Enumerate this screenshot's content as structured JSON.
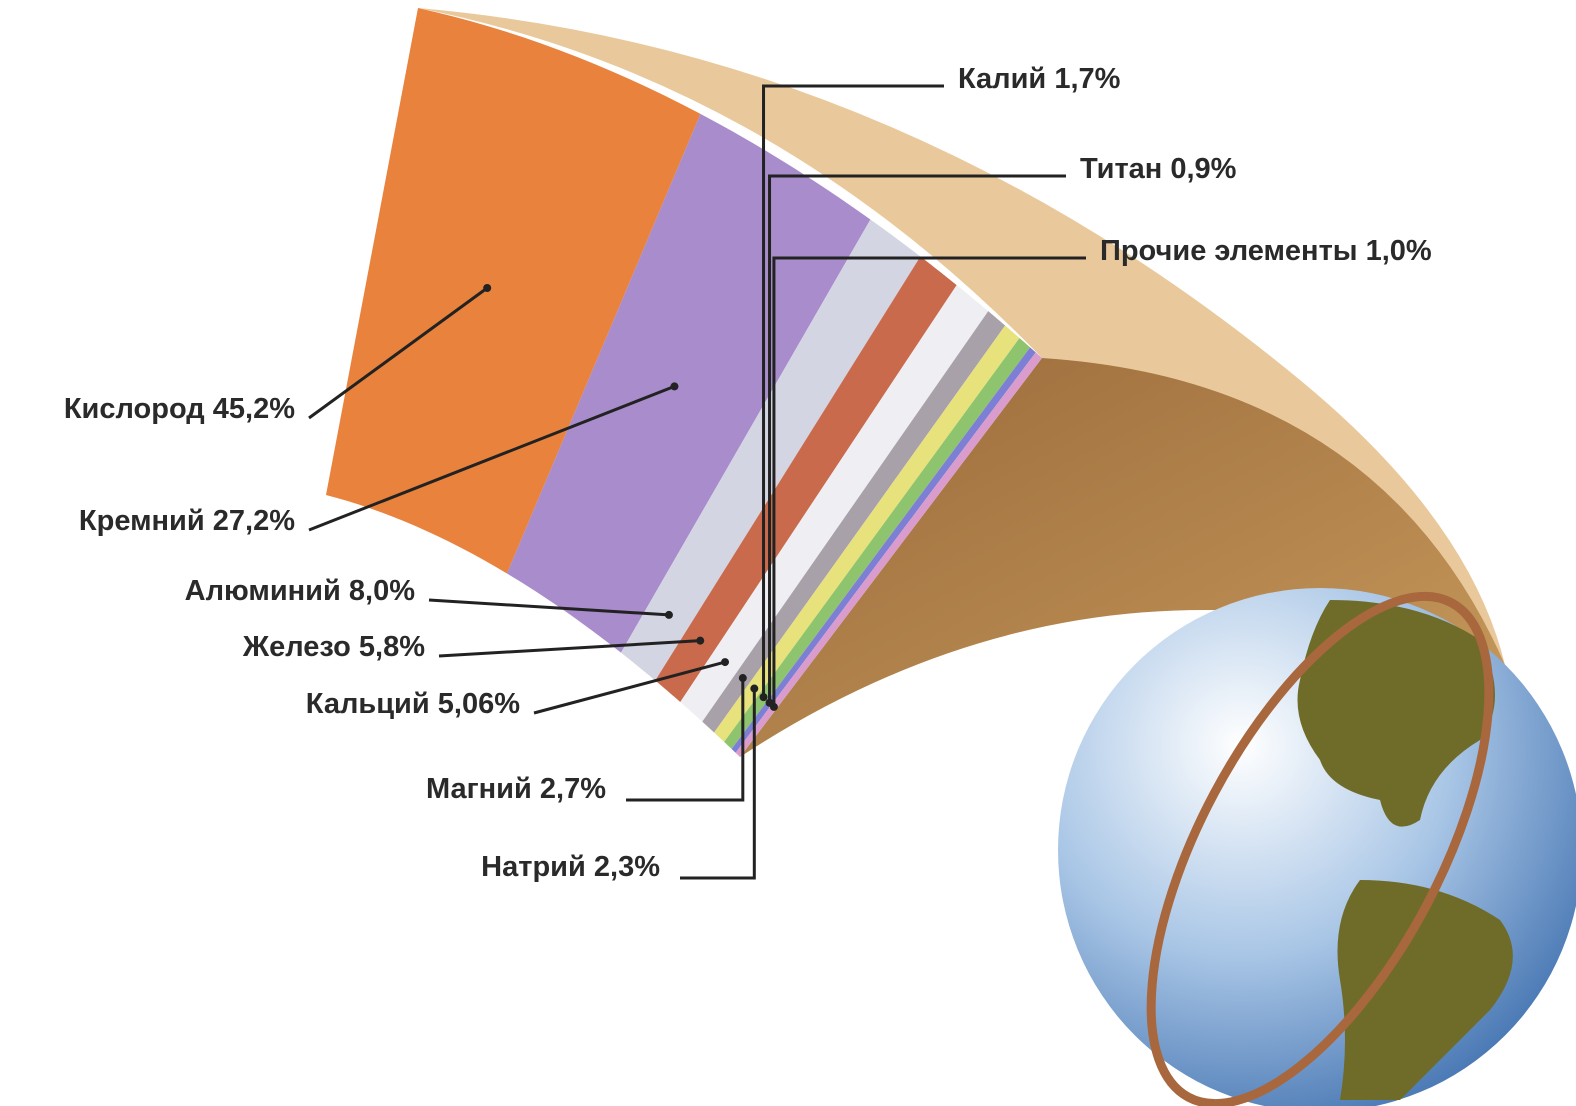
{
  "chart_data": {
    "type": "pie",
    "categories": [
      "Кислород",
      "Кремний",
      "Алюминий",
      "Железо",
      "Кальций",
      "Магний",
      "Натрий",
      "Калий",
      "Титан",
      "Прочие элементы"
    ],
    "values": [
      45.2,
      27.2,
      8.0,
      5.8,
      5.06,
      2.7,
      2.3,
      1.7,
      0.9,
      1.0
    ],
    "value_labels": [
      "45,2%",
      "27,2%",
      "8,0%",
      "5,8%",
      "5,06%",
      "2,7%",
      "2,3%",
      "1,7%",
      "0,9%",
      "1,0%"
    ],
    "colors": [
      "#e8823c",
      "#a88ccb",
      "#d3d5e3",
      "#c96a4c",
      "#eeeef3",
      "#a9a1aa",
      "#e7e27c",
      "#8fc46e",
      "#7c7fd4",
      "#d99ccc"
    ]
  }
}
